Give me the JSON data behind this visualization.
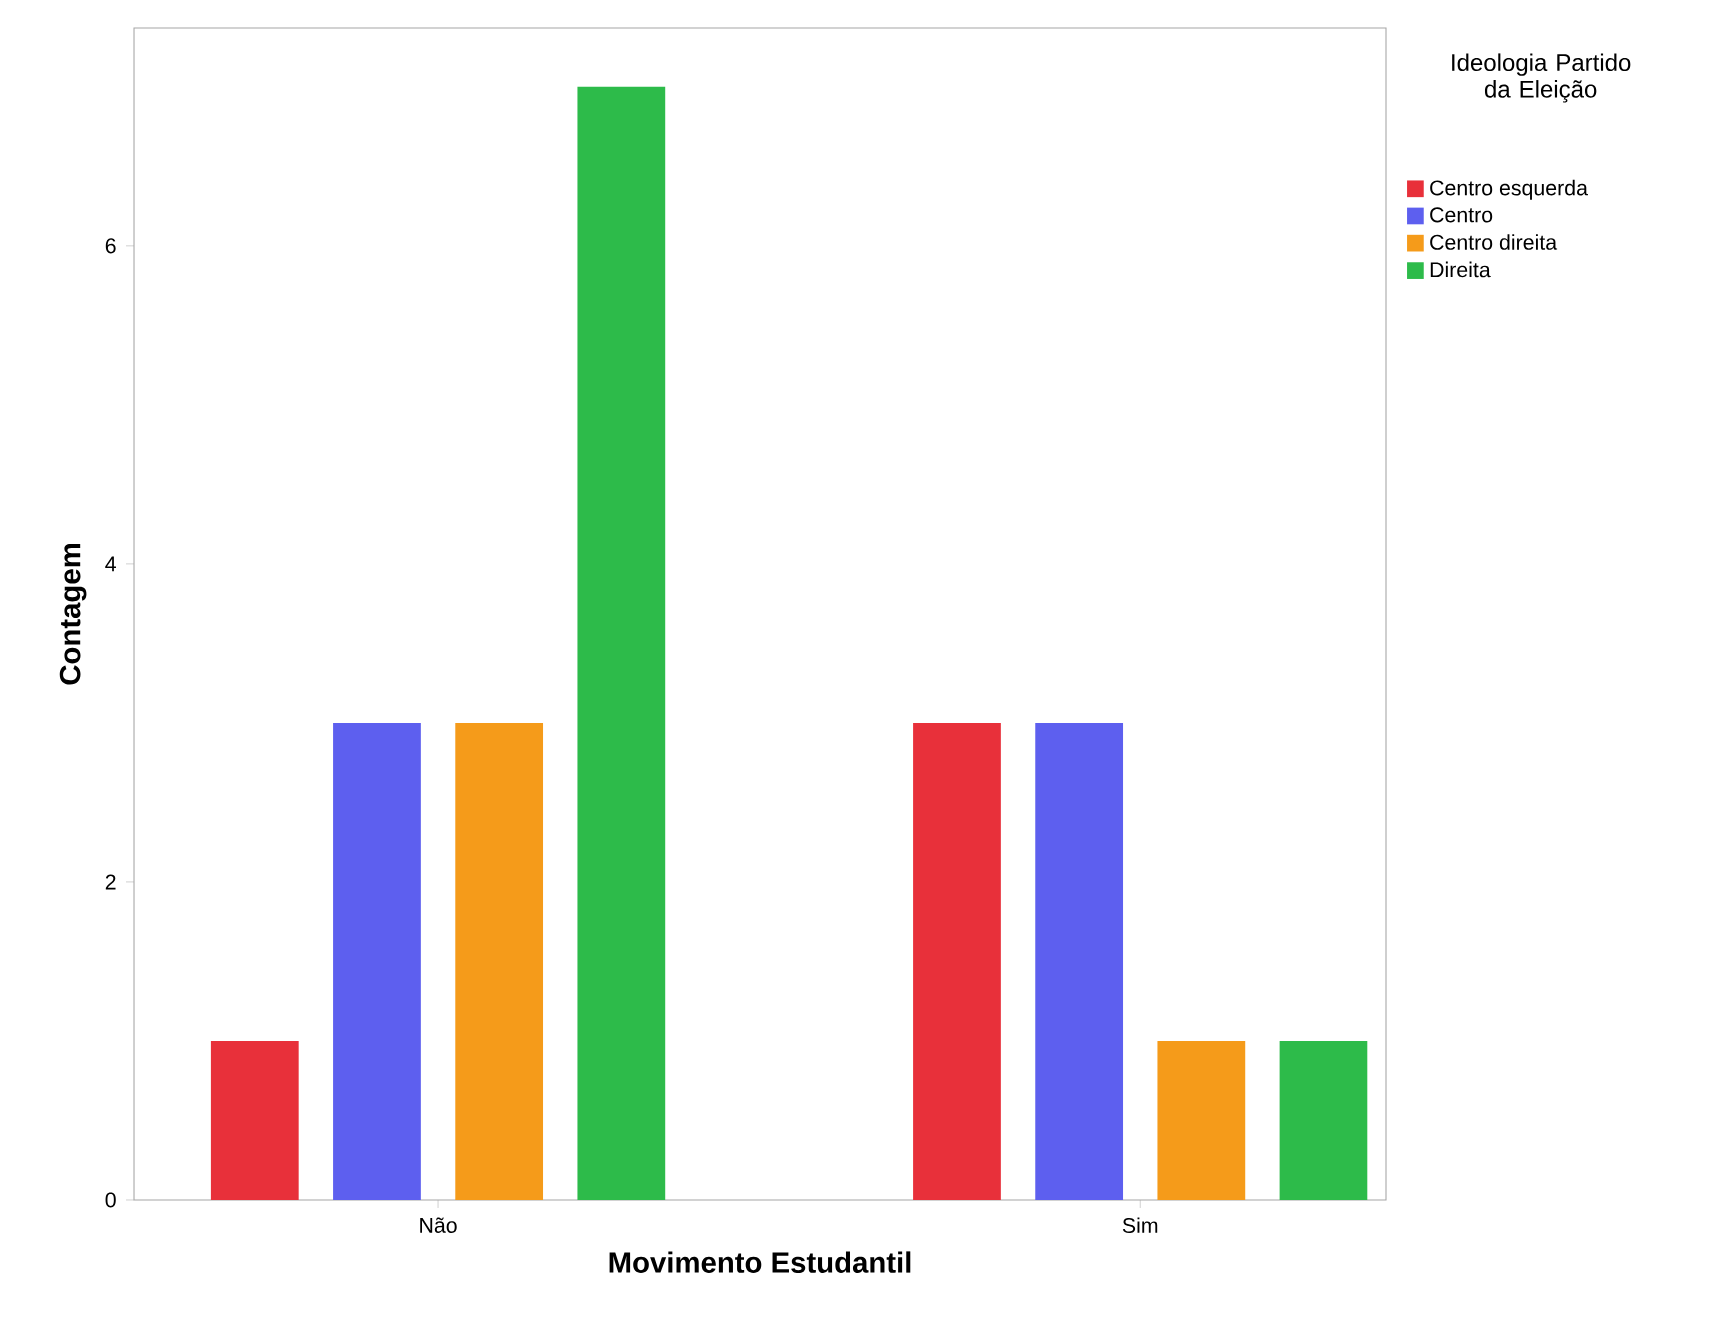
{
  "chart_data": {
    "type": "bar",
    "xlabel": "Movimento Estudantil",
    "ylabel": "Contagem",
    "legend_title": "Ideologia Partido da Eleição",
    "categories": [
      "Não",
      "Sim"
    ],
    "series": [
      {
        "name": "Centro esquerda",
        "color": "#e8303a",
        "values": [
          1,
          3
        ]
      },
      {
        "name": "Centro",
        "color": "#5d5fef",
        "values": [
          3,
          3
        ]
      },
      {
        "name": "Centro direita",
        "color": "#f59b1a",
        "values": [
          3,
          1
        ]
      },
      {
        "name": "Direita",
        "color": "#2dbb4a",
        "values": [
          7,
          1
        ]
      }
    ],
    "ylim": [
      0,
      7.37
    ],
    "yticks": [
      0,
      2,
      4,
      6
    ],
    "grid": false,
    "legend": "top right"
  }
}
